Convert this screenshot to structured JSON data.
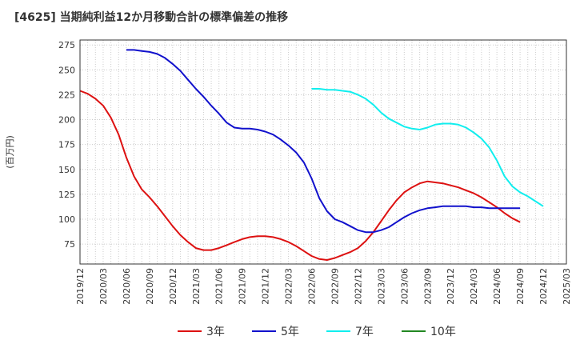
{
  "chart_data": {
    "type": "line",
    "title": "[4625]  当期純利益12か月移動合計の標準偏差の推移",
    "ylabel": "(百万円)",
    "xlabel": "",
    "ylim": [
      55,
      280
    ],
    "yticks": [
      75,
      100,
      125,
      150,
      175,
      200,
      225,
      250,
      275
    ],
    "x_tick_labels": [
      "2019/12",
      "2020/03",
      "2020/06",
      "2020/09",
      "2020/12",
      "2021/03",
      "2021/06",
      "2021/09",
      "2021/12",
      "2022/03",
      "2022/06",
      "2022/09",
      "2022/12",
      "2023/03",
      "2023/06",
      "2023/09",
      "2023/12",
      "2024/03",
      "2024/06",
      "2024/09",
      "2024/12",
      "2025/03"
    ],
    "grid": true,
    "legend_position": "bottom",
    "series": [
      {
        "name": "3年",
        "color": "#dd1111",
        "start_index": 0,
        "values": [
          229,
          226,
          221,
          214,
          202,
          185,
          162,
          143,
          130,
          122,
          113,
          103,
          93,
          84,
          77,
          71,
          69,
          69,
          71,
          74,
          77,
          80,
          82,
          83,
          83,
          82,
          80,
          77,
          73,
          68,
          63,
          60,
          59,
          61,
          64,
          67,
          71,
          78,
          87,
          98,
          109,
          119,
          127,
          132,
          136,
          138,
          137,
          136,
          134,
          132,
          129,
          126,
          122,
          117,
          112,
          106,
          101,
          97
        ]
      },
      {
        "name": "5年",
        "color": "#1111cc",
        "start_index": 6,
        "values": [
          270,
          270,
          269,
          268,
          266,
          262,
          256,
          249,
          240,
          231,
          223,
          214,
          206,
          197,
          192,
          191,
          191,
          190,
          188,
          185,
          180,
          174,
          167,
          157,
          141,
          121,
          108,
          100,
          97,
          93,
          89,
          87,
          87,
          89,
          92,
          97,
          102,
          106,
          109,
          111,
          112,
          113,
          113,
          113,
          113,
          112,
          112,
          111,
          111,
          111,
          111,
          111
        ]
      },
      {
        "name": "7年",
        "color": "#11eeee",
        "start_index": 30,
        "values": [
          231,
          231,
          230,
          230,
          229,
          228,
          225,
          221,
          215,
          207,
          201,
          197,
          193,
          191,
          190,
          192,
          195,
          196,
          196,
          195,
          192,
          187,
          181,
          172,
          159,
          143,
          133,
          127,
          123,
          118,
          113
        ]
      },
      {
        "name": "10年",
        "color": "#228822",
        "start_index": 0,
        "values": []
      }
    ]
  }
}
